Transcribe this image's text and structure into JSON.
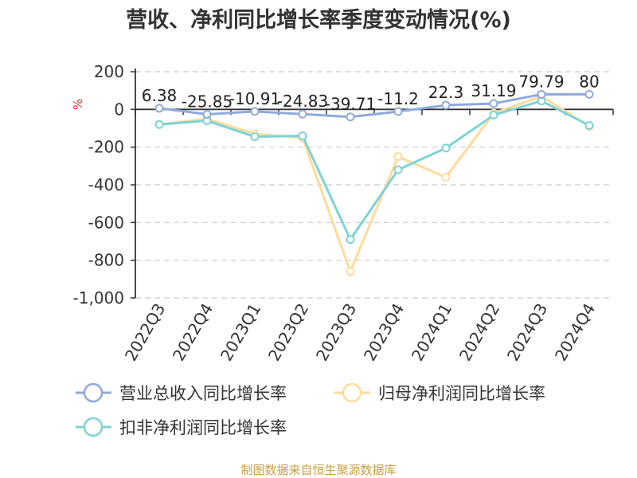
{
  "chart_data": {
    "type": "line",
    "title": "营收、净利同比增长率季度变动情况(%)",
    "y_unit": "%",
    "categories": [
      "2022Q3",
      "2022Q4",
      "2023Q1",
      "2023Q2",
      "2023Q3",
      "2023Q4",
      "2024Q1",
      "2024Q2",
      "2024Q3",
      "2024Q4"
    ],
    "yticks": [
      "200",
      "0",
      "-200",
      "-400",
      "-600",
      "-800",
      "-1,000"
    ],
    "ylim": [
      -1000,
      200
    ],
    "grid": true,
    "legend_position": "bottom",
    "series": [
      {
        "name": "营业总收入同比增长率",
        "color": "#8faadc",
        "values": [
          6.38,
          -25.85,
          -10.91,
          -24.83,
          -39.71,
          -11.2,
          22.3,
          31.19,
          79.79,
          80
        ],
        "labels": [
          "6.38",
          "-25.85",
          "-10.91",
          "-24.83",
          "-39.71",
          "-11.2",
          "22.3",
          "31.19",
          "79.79",
          "80"
        ]
      },
      {
        "name": "归母净利润同比增长率",
        "color": "#fddb9c",
        "values": [
          -80,
          -50,
          -130,
          -150,
          -860,
          -250,
          -360,
          -20,
          70,
          -90
        ]
      },
      {
        "name": "扣非净利润同比增长率",
        "color": "#7fd3d6",
        "values": [
          -80,
          -60,
          -145,
          -140,
          -690,
          -320,
          -205,
          -30,
          45,
          -85
        ]
      }
    ]
  },
  "source": "制图数据来自恒生聚源数据库"
}
